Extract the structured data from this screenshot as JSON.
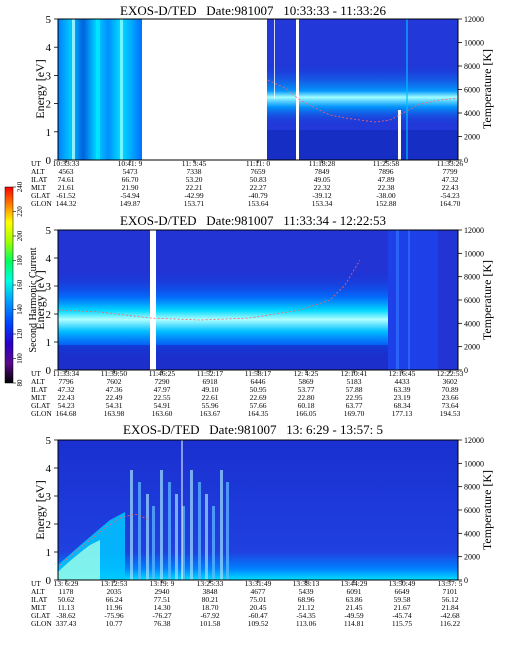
{
  "figure": {
    "colorbar": {
      "label": "Second Harmonic Current",
      "ticks": [
        "80",
        "100",
        "120",
        "140",
        "160",
        "180",
        "200",
        "220",
        "240"
      ],
      "colors": [
        "#000000",
        "#5a0a8a",
        "#2a00c8",
        "#0040ff",
        "#00a0ff",
        "#00ffe0",
        "#00ff60",
        "#a0ff00",
        "#ffff00",
        "#ff8000",
        "#ff0000"
      ]
    }
  },
  "chart_data": [
    {
      "type": "heatmap",
      "title": "EXOS-D/TED   Date:981007   10:33:33 - 11:33:26",
      "ylabel": "Energy [eV]",
      "y2label": "Temperature [K]",
      "ylim": [
        0,
        5
      ],
      "y2lim": [
        0,
        12000
      ],
      "yticks": [
        "0",
        "1",
        "2",
        "3",
        "4",
        "5"
      ],
      "y2ticks": [
        "0",
        "2000",
        "4000",
        "6000",
        "8000",
        "10000",
        "12000"
      ],
      "x_columns": [
        {
          "UT": "10:33:33",
          "ALT": "4563",
          "ILAT": "74.61",
          "MLT": "21.61",
          "GLAT": "-61.52",
          "GLON": "144.32"
        },
        {
          "UT": "10:41: 9",
          "ALT": "5473",
          "ILAT": "66.70",
          "MLT": "21.90",
          "GLAT": "-54.94",
          "GLON": "149.87"
        },
        {
          "UT": "11: 3:45",
          "ALT": "7338",
          "ILAT": "53.20",
          "MLT": "22.21",
          "GLAT": "-42.99",
          "GLON": "153.71"
        },
        {
          "UT": "11:11: 0",
          "ALT": "7659",
          "ILAT": "50.83",
          "MLT": "22.27",
          "GLAT": "-40.79",
          "GLON": "153.64"
        },
        {
          "UT": "11:18:28",
          "ALT": "7849",
          "ILAT": "49.05",
          "MLT": "22.32",
          "GLAT": "-39.12",
          "GLON": "153.34"
        },
        {
          "UT": "11:25:58",
          "ALT": "7896",
          "ILAT": "47.89",
          "MLT": "22.38",
          "GLAT": "-38.00",
          "GLON": "152.88"
        },
        {
          "UT": "11:33:26",
          "ALT": "7799",
          "ILAT": "47.32",
          "MLT": "22.43",
          "GLAT": "-54.23",
          "GLON": "164.70"
        }
      ]
    },
    {
      "type": "heatmap",
      "title": "EXOS-D/TED   Date:981007   11:33:34 - 12:22:53",
      "ylabel": "Energy [eV]",
      "y2label": "Temperature [K]",
      "ylim": [
        0,
        5
      ],
      "y2lim": [
        0,
        12000
      ],
      "yticks": [
        "0",
        "1",
        "2",
        "3",
        "4",
        "5"
      ],
      "y2ticks": [
        "0",
        "2000",
        "4000",
        "6000",
        "8000",
        "10000",
        "12000"
      ],
      "x_columns": [
        {
          "UT": "11:33:34",
          "ALT": "7796",
          "ILAT": "47.32",
          "MLT": "22.43",
          "GLAT": "54.23",
          "GLON": "164.68"
        },
        {
          "UT": "11:39:50",
          "ALT": "7602",
          "ILAT": "47.36",
          "MLT": "22.49",
          "GLAT": "54.31",
          "GLON": "163.98"
        },
        {
          "UT": "11:46:25",
          "ALT": "7290",
          "ILAT": "47.97",
          "MLT": "22.55",
          "GLAT": "54.91",
          "GLON": "163.60"
        },
        {
          "UT": "11:52:17",
          "ALT": "6918",
          "ILAT": "49.10",
          "MLT": "22.61",
          "GLAT": "55.96",
          "GLON": "163.67"
        },
        {
          "UT": "11:58:17",
          "ALT": "6446",
          "ILAT": "50.95",
          "MLT": "22.69",
          "GLAT": "57.66",
          "GLON": "164.35"
        },
        {
          "UT": "12: 4:25",
          "ALT": "5869",
          "ILAT": "53.77",
          "MLT": "22.80",
          "GLAT": "60.18",
          "GLON": "166.05"
        },
        {
          "UT": "12:10:41",
          "ALT": "5183",
          "ILAT": "57.88",
          "MLT": "22.95",
          "GLAT": "63.77",
          "GLON": "169.70"
        },
        {
          "UT": "12:16:45",
          "ALT": "4433",
          "ILAT": "63.39",
          "MLT": "23.19",
          "GLAT": "68.34",
          "GLON": "177.13"
        },
        {
          "UT": "12:22:53",
          "ALT": "3602",
          "ILAT": "70.89",
          "MLT": "23.66",
          "GLAT": "73.64",
          "GLON": "194.53"
        }
      ]
    },
    {
      "type": "heatmap",
      "title": "EXOS-D/TED   Date:981007   13: 6:29 - 13:57: 5",
      "ylabel": "Energy [eV]",
      "y2label": "Temperature [K]",
      "ylim": [
        0,
        5
      ],
      "y2lim": [
        0,
        12000
      ],
      "yticks": [
        "0",
        "1",
        "2",
        "3",
        "4",
        "5"
      ],
      "y2ticks": [
        "0",
        "2000",
        "4000",
        "6000",
        "8000",
        "10000",
        "12000"
      ],
      "x_columns": [
        {
          "UT": "13: 6:29",
          "ALT": "1178",
          "ILAT": "50.62",
          "MLT": "11.13",
          "GLAT": "-38.62",
          "GLON": "337.43"
        },
        {
          "UT": "13:12:53",
          "ALT": "2035",
          "ILAT": "66.24",
          "MLT": "11.96",
          "GLAT": "-75.96",
          "GLON": "10.77"
        },
        {
          "UT": "13:19: 9",
          "ALT": "2940",
          "ILAT": "77.51",
          "MLT": "14.30",
          "GLAT": "-76.27",
          "GLON": "76.38"
        },
        {
          "UT": "13:25:33",
          "ALT": "3848",
          "ILAT": "80.21",
          "MLT": "18.70",
          "GLAT": "-67.92",
          "GLON": "101.58"
        },
        {
          "UT": "13:31:49",
          "ALT": "4677",
          "ILAT": "75.01",
          "MLT": "20.45",
          "GLAT": "-60.47",
          "GLON": "109.52"
        },
        {
          "UT": "13:38:13",
          "ALT": "5439",
          "ILAT": "68.96",
          "MLT": "21.12",
          "GLAT": "-54.35",
          "GLON": "113.06"
        },
        {
          "UT": "13:44:29",
          "ALT": "6091",
          "ILAT": "63.86",
          "MLT": "21.45",
          "GLAT": "-49.59",
          "GLON": "114.81"
        },
        {
          "UT": "13:50:49",
          "ALT": "6649",
          "ILAT": "59.58",
          "MLT": "21.67",
          "GLAT": "-45.74",
          "GLON": "115.75"
        },
        {
          "UT": "13:57: 5",
          "ALT": "7101",
          "ILAT": "56.12",
          "MLT": "21.84",
          "GLAT": "-42.68",
          "GLON": "116.22"
        }
      ]
    }
  ]
}
